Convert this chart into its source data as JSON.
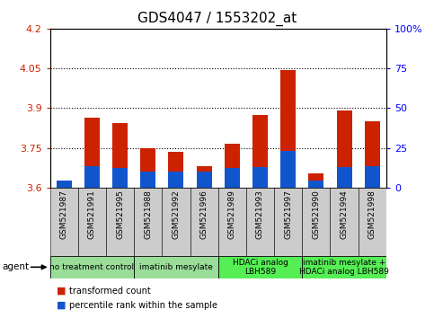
{
  "title": "GDS4047 / 1553202_at",
  "samples": [
    "GSM521987",
    "GSM521991",
    "GSM521995",
    "GSM521988",
    "GSM521992",
    "GSM521996",
    "GSM521989",
    "GSM521993",
    "GSM521997",
    "GSM521990",
    "GSM521994",
    "GSM521998"
  ],
  "red_values": [
    3.605,
    3.865,
    3.845,
    3.75,
    3.735,
    3.68,
    3.765,
    3.875,
    4.045,
    3.655,
    3.89,
    3.85
  ],
  "blue_values": [
    3.625,
    3.68,
    3.675,
    3.66,
    3.66,
    3.66,
    3.675,
    3.678,
    3.74,
    3.625,
    3.678,
    3.68
  ],
  "ymin": 3.6,
  "ymax": 4.2,
  "yticks": [
    3.6,
    3.75,
    3.9,
    4.05,
    4.2
  ],
  "ytick_labels": [
    "3.6",
    "3.75",
    "3.9",
    "4.05",
    "4.2"
  ],
  "right_yticks": [
    0,
    25,
    50,
    75,
    100
  ],
  "right_ytick_labels": [
    "0",
    "25",
    "50",
    "75",
    "100%"
  ],
  "grid_lines": [
    3.75,
    3.9,
    4.05
  ],
  "group_configs": [
    {
      "label": "no treatment control",
      "start": 0,
      "end": 3,
      "bg": "#99dd99"
    },
    {
      "label": "imatinib mesylate",
      "start": 3,
      "end": 6,
      "bg": "#99dd99"
    },
    {
      "label": "HDACi analog\nLBH589",
      "start": 6,
      "end": 9,
      "bg": "#55ee55"
    },
    {
      "label": "imatinib mesylate +\nHDACi analog LBH589",
      "start": 9,
      "end": 12,
      "bg": "#55ee55"
    }
  ],
  "bar_width": 0.55,
  "red_color": "#cc2200",
  "blue_color": "#1155cc",
  "plot_bg": "#ffffff",
  "title_fontsize": 11,
  "axis_fontsize": 8,
  "tick_fontsize": 6.5,
  "group_fontsize": 6.5
}
